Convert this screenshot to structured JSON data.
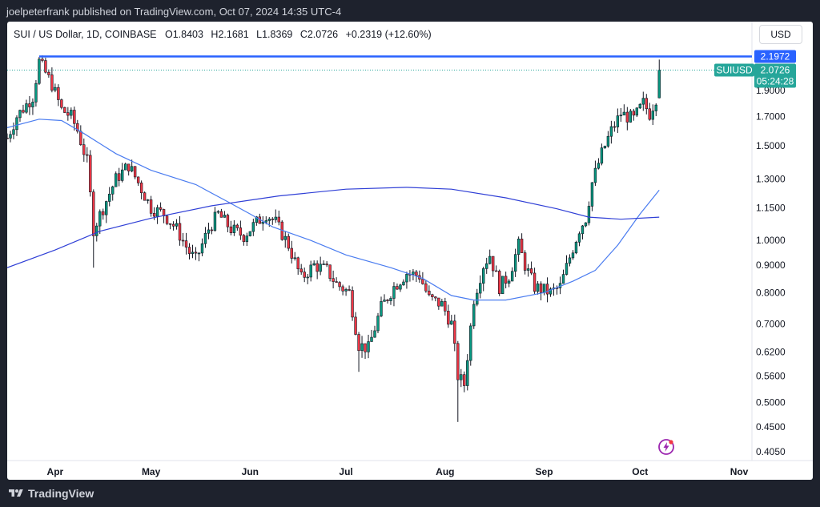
{
  "publisher": "joelpeterfrank published on TradingView.com, Oct 07, 2024 14:35 UTC-4",
  "legend": {
    "symbol": "SUI / US Dollar, 1D, COINBASE",
    "open_label": "O",
    "open": "1.8403",
    "high_label": "H",
    "high": "2.1681",
    "low_label": "L",
    "low": "1.8369",
    "close_label": "C",
    "close": "2.0726",
    "change": "+0.2319 (+12.60%)"
  },
  "currency_button": "USD",
  "footer_brand": "TradingView",
  "colors": {
    "up": "#089981",
    "down": "#f23645",
    "ma_fast": "#4a7cf0",
    "ma_slow": "#2f3fd6",
    "resistance": "#2962ff",
    "price_line": "#26a69a"
  },
  "chart_data": {
    "type": "candlestick",
    "title": "SUI / US Dollar, 1D, COINBASE",
    "scale": "log",
    "ylim": [
      0.39,
      2.55
    ],
    "y_ticks": [
      "1.9000",
      "1.7000",
      "1.5000",
      "1.3000",
      "1.1500",
      "1.0000",
      "0.9000",
      "0.8000",
      "0.7000",
      "0.6200",
      "0.5600",
      "0.5000",
      "0.4500",
      "0.4050"
    ],
    "x_ticks": [
      "Apr",
      "May",
      "Jun",
      "Jul",
      "Aug",
      "Sep",
      "Oct",
      "Nov"
    ],
    "x_range": [
      "2024-03-17",
      "2024-11-05"
    ],
    "resistance": {
      "value": 2.1972,
      "label": "2.1972"
    },
    "last_price": {
      "symbol": "SUIUSD",
      "value": 2.0726,
      "label": "2.0726",
      "countdown": "05:24:28"
    },
    "anchors": [
      {
        "date": "2024-03-17",
        "price": 1.55
      },
      {
        "date": "2024-03-20",
        "price": 1.7
      },
      {
        "date": "2024-03-25",
        "price": 1.85
      },
      {
        "date": "2024-03-27",
        "price": 2.15
      },
      {
        "date": "2024-03-31",
        "price": 1.95
      },
      {
        "date": "2024-04-03",
        "price": 1.75
      },
      {
        "date": "2024-04-06",
        "price": 1.7
      },
      {
        "date": "2024-04-08",
        "price": 1.6
      },
      {
        "date": "2024-04-11",
        "price": 1.4
      },
      {
        "date": "2024-04-13",
        "price": 1.05
      },
      {
        "date": "2024-04-16",
        "price": 1.15
      },
      {
        "date": "2024-04-20",
        "price": 1.3
      },
      {
        "date": "2024-04-24",
        "price": 1.38
      },
      {
        "date": "2024-04-27",
        "price": 1.28
      },
      {
        "date": "2024-05-01",
        "price": 1.15
      },
      {
        "date": "2024-05-05",
        "price": 1.12
      },
      {
        "date": "2024-05-09",
        "price": 1.05
      },
      {
        "date": "2024-05-13",
        "price": 0.95
      },
      {
        "date": "2024-05-15",
        "price": 0.92
      },
      {
        "date": "2024-05-19",
        "price": 1.05
      },
      {
        "date": "2024-05-22",
        "price": 1.12
      },
      {
        "date": "2024-05-26",
        "price": 1.05
      },
      {
        "date": "2024-05-30",
        "price": 1.02
      },
      {
        "date": "2024-06-03",
        "price": 1.08
      },
      {
        "date": "2024-06-06",
        "price": 1.12
      },
      {
        "date": "2024-06-09",
        "price": 1.08
      },
      {
        "date": "2024-06-13",
        "price": 0.98
      },
      {
        "date": "2024-06-17",
        "price": 0.85
      },
      {
        "date": "2024-06-21",
        "price": 0.9
      },
      {
        "date": "2024-06-25",
        "price": 0.88
      },
      {
        "date": "2024-06-28",
        "price": 0.83
      },
      {
        "date": "2024-07-02",
        "price": 0.8
      },
      {
        "date": "2024-07-05",
        "price": 0.64
      },
      {
        "date": "2024-07-08",
        "price": 0.63
      },
      {
        "date": "2024-07-12",
        "price": 0.75
      },
      {
        "date": "2024-07-16",
        "price": 0.82
      },
      {
        "date": "2024-07-20",
        "price": 0.87
      },
      {
        "date": "2024-07-24",
        "price": 0.86
      },
      {
        "date": "2024-07-27",
        "price": 0.78
      },
      {
        "date": "2024-07-31",
        "price": 0.76
      },
      {
        "date": "2024-08-03",
        "price": 0.7
      },
      {
        "date": "2024-08-05",
        "price": 0.56
      },
      {
        "date": "2024-08-07",
        "price": 0.54
      },
      {
        "date": "2024-08-10",
        "price": 0.78
      },
      {
        "date": "2024-08-13",
        "price": 0.9
      },
      {
        "date": "2024-08-15",
        "price": 0.94
      },
      {
        "date": "2024-08-18",
        "price": 0.82
      },
      {
        "date": "2024-08-21",
        "price": 0.86
      },
      {
        "date": "2024-08-24",
        "price": 0.98
      },
      {
        "date": "2024-08-26",
        "price": 0.9
      },
      {
        "date": "2024-08-29",
        "price": 0.82
      },
      {
        "date": "2024-09-03",
        "price": 0.8
      },
      {
        "date": "2024-09-06",
        "price": 0.82
      },
      {
        "date": "2024-09-09",
        "price": 0.93
      },
      {
        "date": "2024-09-12",
        "price": 1.05
      },
      {
        "date": "2024-09-14",
        "price": 1.1
      },
      {
        "date": "2024-09-16",
        "price": 1.28
      },
      {
        "date": "2024-09-19",
        "price": 1.45
      },
      {
        "date": "2024-09-22",
        "price": 1.6
      },
      {
        "date": "2024-09-25",
        "price": 1.72
      },
      {
        "date": "2024-09-29",
        "price": 1.68
      },
      {
        "date": "2024-10-02",
        "price": 1.8
      },
      {
        "date": "2024-10-04",
        "price": 1.72
      },
      {
        "date": "2024-10-06",
        "price": 1.84
      },
      {
        "date": "2024-10-07",
        "price": 2.07
      }
    ],
    "series": [
      {
        "name": "",
        "values": [
          {
            "date": "2024-03-17",
            "price": 1.62
          },
          {
            "date": "2024-03-27",
            "price": 1.68
          },
          {
            "date": "2024-04-03",
            "price": 1.67
          },
          {
            "date": "2024-04-10",
            "price": 1.58
          },
          {
            "date": "2024-04-20",
            "price": 1.45
          },
          {
            "date": "2024-05-01",
            "price": 1.35
          },
          {
            "date": "2024-05-15",
            "price": 1.27
          },
          {
            "date": "2024-05-25",
            "price": 1.18
          },
          {
            "date": "2024-06-01",
            "price": 1.12
          },
          {
            "date": "2024-06-08",
            "price": 1.06
          },
          {
            "date": "2024-06-20",
            "price": 1.0
          },
          {
            "date": "2024-07-01",
            "price": 0.94
          },
          {
            "date": "2024-07-15",
            "price": 0.89
          },
          {
            "date": "2024-07-25",
            "price": 0.85
          },
          {
            "date": "2024-08-03",
            "price": 0.79
          },
          {
            "date": "2024-08-10",
            "price": 0.775
          },
          {
            "date": "2024-08-20",
            "price": 0.775
          },
          {
            "date": "2024-09-01",
            "price": 0.8
          },
          {
            "date": "2024-09-10",
            "price": 0.84
          },
          {
            "date": "2024-09-17",
            "price": 0.88
          },
          {
            "date": "2024-09-24",
            "price": 0.98
          },
          {
            "date": "2024-10-01",
            "price": 1.12
          },
          {
            "date": "2024-10-07",
            "price": 1.24
          }
        ]
      },
      {
        "name": "",
        "values": [
          {
            "date": "2024-03-17",
            "price": 0.89
          },
          {
            "date": "2024-04-01",
            "price": 0.96
          },
          {
            "date": "2024-04-15",
            "price": 1.04
          },
          {
            "date": "2024-05-01",
            "price": 1.1
          },
          {
            "date": "2024-05-20",
            "price": 1.16
          },
          {
            "date": "2024-06-10",
            "price": 1.21
          },
          {
            "date": "2024-07-01",
            "price": 1.245
          },
          {
            "date": "2024-07-20",
            "price": 1.255
          },
          {
            "date": "2024-08-03",
            "price": 1.245
          },
          {
            "date": "2024-08-20",
            "price": 1.2
          },
          {
            "date": "2024-09-05",
            "price": 1.145
          },
          {
            "date": "2024-09-15",
            "price": 1.105
          },
          {
            "date": "2024-09-25",
            "price": 1.095
          },
          {
            "date": "2024-10-07",
            "price": 1.105
          }
        ]
      }
    ]
  }
}
